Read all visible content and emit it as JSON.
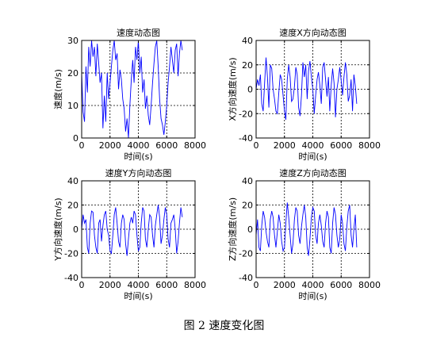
{
  "figure": {
    "caption": "图 2  速度变化图"
  },
  "chart_data": [
    {
      "type": "line",
      "title": "速度动态图",
      "xlabel": "时间(s)",
      "ylabel": "速度(m/s)",
      "xlim": [
        0,
        8000
      ],
      "ylim": [
        0,
        30
      ],
      "xticks": [
        0,
        2000,
        4000,
        6000,
        8000
      ],
      "yticks": [
        0,
        10,
        20,
        30
      ],
      "grid": true,
      "color": "#0000ff",
      "series": [
        {
          "x": [
            0,
            100,
            200,
            300,
            400,
            500,
            600,
            700,
            800,
            900,
            1000,
            1100,
            1200,
            1300,
            1400,
            1500,
            1600,
            1700,
            1800,
            1900,
            2000,
            2100,
            2200,
            2300,
            2400,
            2500,
            2600,
            2700,
            2800,
            2900,
            3000,
            3100,
            3200,
            3300,
            3400,
            3500,
            3600,
            3700,
            3800,
            3900,
            4000,
            4100,
            4200,
            4300,
            4400,
            4500,
            4600,
            4700,
            4800,
            4900,
            5000,
            5100,
            5200,
            5300,
            5400,
            5500,
            5600,
            5700,
            5800,
            5900,
            6000,
            6100,
            6200,
            6300,
            6400,
            6500,
            6600,
            6700,
            6800,
            6900,
            7000,
            7100
          ],
          "values": [
            20,
            8,
            5,
            22,
            14,
            28,
            22,
            30,
            25,
            28,
            19,
            29,
            23,
            17,
            20,
            3,
            13,
            5,
            20,
            12,
            17,
            22,
            27,
            30,
            24,
            26,
            15,
            21,
            18,
            12,
            9,
            2,
            6,
            0,
            10,
            18,
            24,
            17,
            28,
            24,
            30,
            20,
            25,
            14,
            18,
            9,
            13,
            7,
            4,
            10,
            17,
            23,
            28,
            30,
            22,
            12,
            6,
            4,
            1,
            5,
            10,
            17,
            22,
            28,
            24,
            20,
            27,
            29,
            19,
            26,
            30,
            27
          ]
        }
      ]
    },
    {
      "type": "line",
      "title": "速度X方向动态图",
      "xlabel": "时间(s)",
      "ylabel": "X方向速度(m/s)",
      "xlim": [
        0,
        8000
      ],
      "ylim": [
        -40,
        40
      ],
      "xticks": [
        0,
        2000,
        4000,
        6000,
        8000
      ],
      "yticks": [
        -40,
        -20,
        0,
        20,
        40
      ],
      "grid": true,
      "color": "#0000ff",
      "series": [
        {
          "x": [
            0,
            100,
            200,
            300,
            400,
            500,
            600,
            700,
            800,
            900,
            1000,
            1100,
            1200,
            1300,
            1400,
            1500,
            1600,
            1700,
            1800,
            1900,
            2000,
            2100,
            2200,
            2300,
            2400,
            2500,
            2600,
            2700,
            2800,
            2900,
            3000,
            3100,
            3200,
            3300,
            3400,
            3500,
            3600,
            3700,
            3800,
            3900,
            4000,
            4100,
            4200,
            4300,
            4400,
            4500,
            4600,
            4700,
            4800,
            4900,
            5000,
            5100,
            5200,
            5300,
            5400,
            5500,
            5600,
            5700,
            5800,
            5900,
            6000,
            6100,
            6200,
            6300,
            6400,
            6500,
            6600,
            6700,
            6800,
            6900,
            7000,
            7100
          ],
          "values": [
            0,
            8,
            3,
            12,
            -12,
            -18,
            5,
            26,
            10,
            -15,
            20,
            17,
            0,
            -8,
            -18,
            -20,
            -3,
            12,
            8,
            -5,
            -18,
            -25,
            8,
            20,
            10,
            -10,
            -8,
            2,
            18,
            12,
            -15,
            -22,
            -5,
            22,
            10,
            20,
            -8,
            15,
            23,
            10,
            0,
            -20,
            -5,
            8,
            14,
            3,
            -12,
            18,
            22,
            8,
            -6,
            10,
            -18,
            3,
            17,
            5,
            -23,
            0,
            8,
            18,
            7,
            -5,
            10,
            22,
            12,
            -10,
            -5,
            8,
            -18,
            12,
            3,
            -12
          ]
        }
      ]
    },
    {
      "type": "line",
      "title": "速度Y方向动态图",
      "xlabel": "时间(s)",
      "ylabel": "Y方向速度(m/s)",
      "xlim": [
        0,
        8000
      ],
      "ylim": [
        -40,
        40
      ],
      "xticks": [
        0,
        2000,
        4000,
        6000,
        8000
      ],
      "yticks": [
        -40,
        -20,
        0,
        20,
        40
      ],
      "grid": true,
      "color": "#0000ff",
      "series": [
        {
          "x": [
            0,
            100,
            200,
            300,
            400,
            500,
            600,
            700,
            800,
            900,
            1000,
            1100,
            1200,
            1300,
            1400,
            1500,
            1600,
            1700,
            1800,
            1900,
            2000,
            2100,
            2200,
            2300,
            2400,
            2500,
            2600,
            2700,
            2800,
            2900,
            3000,
            3100,
            3200,
            3300,
            3400,
            3500,
            3600,
            3700,
            3800,
            3900,
            4000,
            4100,
            4200,
            4300,
            4400,
            4500,
            4600,
            4700,
            4800,
            4900,
            5000,
            5100,
            5200,
            5300,
            5400,
            5500,
            5600,
            5700,
            5800,
            5900,
            6000,
            6100,
            6200,
            6300,
            6400,
            6500,
            6600,
            6700,
            6800,
            6900,
            7000,
            7100
          ],
          "values": [
            0,
            12,
            5,
            8,
            -15,
            -20,
            5,
            15,
            14,
            -5,
            -15,
            -20,
            5,
            8,
            -10,
            3,
            12,
            15,
            0,
            -5,
            -18,
            -20,
            -5,
            12,
            18,
            5,
            -10,
            -15,
            5,
            12,
            8,
            -12,
            -22,
            -8,
            5,
            10,
            5,
            15,
            12,
            -5,
            -18,
            -15,
            5,
            18,
            15,
            -8,
            -15,
            0,
            12,
            10,
            -5,
            -15,
            3,
            12,
            20,
            10,
            -12,
            -5,
            8,
            18,
            12,
            -8,
            -15,
            5,
            8,
            12,
            0,
            -20,
            -10,
            5,
            18,
            10
          ]
        }
      ]
    },
    {
      "type": "line",
      "title": "速度Z方向动态图",
      "xlabel": "时间(s)",
      "ylabel": "Z方向速度(m/s)",
      "xlim": [
        0,
        8000
      ],
      "ylim": [
        -40,
        40
      ],
      "xticks": [
        0,
        2000,
        4000,
        6000,
        8000
      ],
      "yticks": [
        -40,
        -20,
        0,
        20,
        40
      ],
      "grid": true,
      "color": "#0000ff",
      "series": [
        {
          "x": [
            0,
            100,
            200,
            300,
            400,
            500,
            600,
            700,
            800,
            900,
            1000,
            1100,
            1200,
            1300,
            1400,
            1500,
            1600,
            1700,
            1800,
            1900,
            2000,
            2100,
            2200,
            2300,
            2400,
            2500,
            2600,
            2700,
            2800,
            2900,
            3000,
            3100,
            3200,
            3300,
            3400,
            3500,
            3600,
            3700,
            3800,
            3900,
            4000,
            4100,
            4200,
            4300,
            4400,
            4500,
            4600,
            4700,
            4800,
            4900,
            5000,
            5100,
            5200,
            5300,
            5400,
            5500,
            5600,
            5700,
            5800,
            5900,
            6000,
            6100,
            6200,
            6300,
            6400,
            6500,
            6600,
            6700,
            6800,
            6900,
            7000,
            7100
          ],
          "values": [
            -5,
            8,
            -15,
            -18,
            3,
            15,
            10,
            -2,
            -10,
            -15,
            8,
            15,
            10,
            -5,
            -15,
            -2,
            12,
            5,
            -10,
            -18,
            -15,
            5,
            22,
            10,
            -5,
            -20,
            -12,
            8,
            18,
            15,
            -5,
            -12,
            2,
            12,
            20,
            10,
            -15,
            -22,
            -8,
            10,
            18,
            15,
            -5,
            -12,
            5,
            12,
            3,
            -10,
            -15,
            5,
            15,
            10,
            -15,
            -20,
            5,
            18,
            12,
            -5,
            -15,
            -8,
            12,
            5,
            -12,
            -18,
            2,
            15,
            20,
            -5,
            -15,
            0,
            12,
            -15
          ]
        }
      ]
    }
  ]
}
